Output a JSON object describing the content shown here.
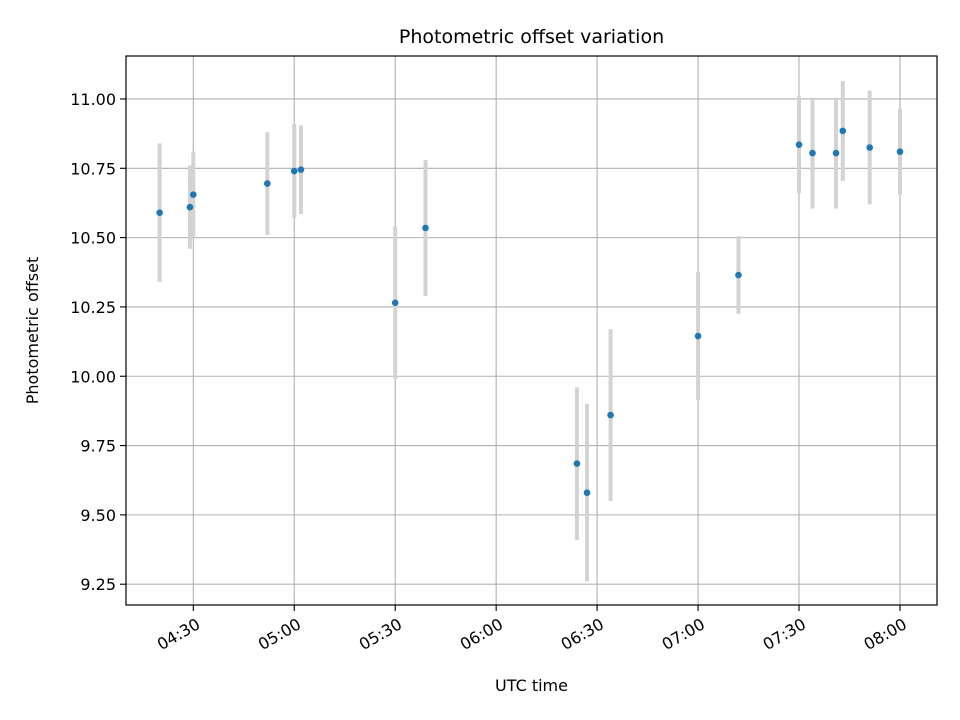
{
  "chart_data": {
    "type": "scatter",
    "title": "Photometric offset variation",
    "xlabel": "UTC time",
    "ylabel": "Photometric offset",
    "grid": true,
    "x_ticks": [
      "04:30",
      "05:00",
      "05:30",
      "06:00",
      "06:30",
      "07:00",
      "07:30",
      "08:00"
    ],
    "y_ticks": [
      "9.25",
      "9.50",
      "9.75",
      "10.00",
      "10.25",
      "10.50",
      "10.75",
      "11.00"
    ],
    "xlim": [
      "04:10",
      "08:11"
    ],
    "ylim": [
      9.175,
      11.155
    ],
    "colors": {
      "point": "#1f77b4",
      "errorbar": "#d3d3d3",
      "grid": "#b0b0b0"
    },
    "points": [
      {
        "x": "04:20",
        "y": 10.59,
        "yerr": 0.25
      },
      {
        "x": "04:29",
        "y": 10.61,
        "yerr": 0.15
      },
      {
        "x": "04:30",
        "y": 10.655,
        "yerr": 0.155
      },
      {
        "x": "04:52",
        "y": 10.695,
        "yerr": 0.185
      },
      {
        "x": "05:00",
        "y": 10.74,
        "yerr": 0.17
      },
      {
        "x": "05:02",
        "y": 10.745,
        "yerr": 0.16
      },
      {
        "x": "05:30",
        "y": 10.265,
        "yerr": 0.275
      },
      {
        "x": "05:39",
        "y": 10.535,
        "yerr": 0.245
      },
      {
        "x": "06:24",
        "y": 9.685,
        "yerr": 0.275
      },
      {
        "x": "06:27",
        "y": 9.58,
        "yerr": 0.32
      },
      {
        "x": "06:34",
        "y": 9.86,
        "yerr": 0.31
      },
      {
        "x": "07:00",
        "y": 10.145,
        "yerr": 0.23
      },
      {
        "x": "07:12",
        "y": 10.365,
        "yerr": 0.14
      },
      {
        "x": "07:30",
        "y": 10.835,
        "yerr": 0.175
      },
      {
        "x": "07:34",
        "y": 10.805,
        "yerr": 0.2
      },
      {
        "x": "07:41",
        "y": 10.805,
        "yerr": 0.2
      },
      {
        "x": "07:43",
        "y": 10.885,
        "yerr": 0.18
      },
      {
        "x": "07:51",
        "y": 10.825,
        "yerr": 0.205
      },
      {
        "x": "08:00",
        "y": 10.81,
        "yerr": 0.155
      }
    ]
  }
}
